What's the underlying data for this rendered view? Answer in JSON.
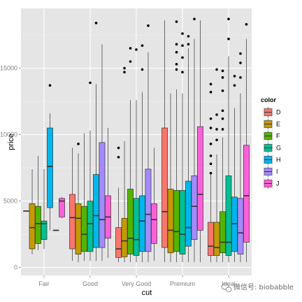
{
  "chart_data": {
    "type": "boxplot",
    "xlabel": "cut",
    "ylabel": "price",
    "ylim": [
      -600,
      19500
    ],
    "y_ticks": [
      0,
      5000,
      10000,
      15000
    ],
    "categories": [
      "Fair",
      "Good",
      "Very Good",
      "Premium",
      "Ideal"
    ],
    "legend_title": "color",
    "legend_placement": "right",
    "grid": true,
    "series": [
      {
        "name": "D",
        "color": "#F8766D",
        "boxes": [
          {
            "cat": "Fair",
            "min": 4250,
            "q1": 4250,
            "median": 4250,
            "q3": 4250,
            "max": 4250,
            "outliers": []
          },
          {
            "cat": "Good",
            "min": 500,
            "q1": 1400,
            "median": 3750,
            "q3": 5500,
            "max": 9000,
            "outliers": []
          },
          {
            "cat": "Very Good",
            "min": 400,
            "q1": 750,
            "median": 1400,
            "q3": 3000,
            "max": 6000,
            "outliers": [
              8300,
              9000
            ]
          },
          {
            "cat": "Premium",
            "min": 400,
            "q1": 1500,
            "median": 4200,
            "q3": 10500,
            "max": 18600,
            "outliers": []
          },
          {
            "cat": "Ideal",
            "min": 400,
            "q1": 900,
            "median": 1600,
            "q3": 3400,
            "max": 7000,
            "outliers": [
              7100,
              7800,
              8400,
              9300,
              10500,
              11200,
              13200,
              13800
            ]
          }
        ]
      },
      {
        "name": "E",
        "color": "#C49A00",
        "boxes": [
          {
            "cat": "Fair",
            "min": 1000,
            "q1": 1400,
            "median": 3000,
            "q3": 4800,
            "max": 7400,
            "outliers": []
          },
          {
            "cat": "Good",
            "min": 400,
            "q1": 1000,
            "median": 3700,
            "q3": 4800,
            "max": 8600,
            "outliers": [
              9300
            ]
          },
          {
            "cat": "Very Good",
            "min": 400,
            "q1": 800,
            "median": 2000,
            "q3": 3700,
            "max": 9500,
            "outliers": [
              14700,
              15000
            ]
          },
          {
            "cat": "Premium",
            "min": 400,
            "q1": 1100,
            "median": 2800,
            "q3": 5900,
            "max": 13100,
            "outliers": []
          },
          {
            "cat": "Ideal",
            "min": 400,
            "q1": 900,
            "median": 1500,
            "q3": 3400,
            "max": 8500,
            "outliers": [
              9600,
              10400,
              11500,
              14900
            ]
          }
        ]
      },
      {
        "name": "F",
        "color": "#53B400",
        "boxes": [
          {
            "cat": "Fair",
            "min": 1300,
            "q1": 1800,
            "median": 3300,
            "q3": 4600,
            "max": 8400,
            "outliers": []
          },
          {
            "cat": "Good",
            "min": 500,
            "q1": 1200,
            "median": 2500,
            "q3": 4600,
            "max": 10100,
            "outliers": []
          },
          {
            "cat": "Very Good",
            "min": 400,
            "q1": 1000,
            "median": 2200,
            "q3": 5900,
            "max": 12600,
            "outliers": [
              15500,
              16500
            ]
          },
          {
            "cat": "Premium",
            "min": 400,
            "q1": 1200,
            "median": 2700,
            "q3": 5800,
            "max": 13400,
            "outliers": [
              14900,
              15300,
              16200,
              16800,
              18500
            ]
          },
          {
            "cat": "Ideal",
            "min": 400,
            "q1": 1100,
            "median": 1900,
            "q3": 4200,
            "max": 9800,
            "outliers": [
              10400,
              11200,
              11800,
              13300,
              14300,
              14800
            ]
          }
        ]
      },
      {
        "name": "G",
        "color": "#00C094",
        "boxes": [
          {
            "cat": "Fair",
            "min": 1400,
            "q1": 2100,
            "median": 3300,
            "q3": 3500,
            "max": 7400,
            "outliers": []
          },
          {
            "cat": "Good",
            "min": 500,
            "q1": 1200,
            "median": 3300,
            "q3": 5000,
            "max": 10300,
            "outliers": [
              13900
            ]
          },
          {
            "cat": "Very Good",
            "min": 400,
            "q1": 900,
            "median": 2100,
            "q3": 5200,
            "max": 12600,
            "outliers": [
              16400
            ]
          },
          {
            "cat": "Premium",
            "min": 400,
            "q1": 1000,
            "median": 2500,
            "q3": 5800,
            "max": 13100,
            "outliers": [
              14700,
              15800,
              16700,
              17600
            ]
          },
          {
            "cat": "Ideal",
            "min": 400,
            "q1": 900,
            "median": 1900,
            "q3": 6900,
            "max": 15900,
            "outliers": [
              17200,
              18700
            ]
          }
        ]
      },
      {
        "name": "H",
        "color": "#00B6EB",
        "boxes": [
          {
            "cat": "Fair",
            "min": 2800,
            "q1": 4500,
            "median": 7600,
            "q3": 10500,
            "max": 11600,
            "outliers": [
              13700
            ]
          },
          {
            "cat": "Good",
            "min": 500,
            "q1": 1500,
            "median": 3900,
            "q3": 7000,
            "max": 13800,
            "outliers": [
              18400
            ]
          },
          {
            "cat": "Very Good",
            "min": 400,
            "q1": 1200,
            "median": 3500,
            "q3": 5400,
            "max": 13200,
            "outliers": [
              14900,
              16700
            ]
          },
          {
            "cat": "Premium",
            "min": 400,
            "q1": 1600,
            "median": 3000,
            "q3": 6500,
            "max": 16500,
            "outliers": [
              16800,
              17400
            ]
          },
          {
            "cat": "Ideal",
            "min": 400,
            "q1": 1200,
            "median": 3300,
            "q3": 5300,
            "max": 12000,
            "outliers": [
              13700,
              14400
            ]
          }
        ]
      },
      {
        "name": "I",
        "color": "#A58AFF",
        "boxes": [
          {
            "cat": "Fair",
            "min": 2800,
            "q1": 2800,
            "median": 2800,
            "q3": 2800,
            "max": 2800,
            "outliers": []
          },
          {
            "cat": "Good",
            "min": 500,
            "q1": 1500,
            "median": 3600,
            "q3": 9400,
            "max": 16800,
            "outliers": []
          },
          {
            "cat": "Very Good",
            "min": 400,
            "q1": 1200,
            "median": 4000,
            "q3": 7400,
            "max": 16200,
            "outliers": [
              18200
            ]
          },
          {
            "cat": "Premium",
            "min": 400,
            "q1": 2100,
            "median": 4600,
            "q3": 6900,
            "max": 17200,
            "outliers": [
              18700
            ]
          },
          {
            "cat": "Ideal",
            "min": 400,
            "q1": 1000,
            "median": 2600,
            "q3": 5200,
            "max": 13100,
            "outliers": [
              14300,
              15400,
              16100
            ]
          }
        ]
      },
      {
        "name": "J",
        "color": "#FB61D7",
        "boxes": [
          {
            "cat": "Fair",
            "min": 3700,
            "q1": 3800,
            "median": 5000,
            "q3": 5200,
            "max": 5300,
            "outliers": []
          },
          {
            "cat": "Good",
            "min": 700,
            "q1": 2200,
            "median": 3800,
            "q3": 5400,
            "max": 10500,
            "outliers": []
          },
          {
            "cat": "Very Good",
            "min": 500,
            "q1": 1800,
            "median": 3600,
            "q3": 4800,
            "max": 9000,
            "outliers": []
          },
          {
            "cat": "Premium",
            "min": 400,
            "q1": 2800,
            "median": 5500,
            "q3": 10600,
            "max": 18600,
            "outliers": []
          },
          {
            "cat": "Ideal",
            "min": 400,
            "q1": 1900,
            "median": 5400,
            "q3": 9200,
            "max": 17200,
            "outliers": [
              18300
            ]
          }
        ]
      }
    ]
  },
  "watermark": {
    "text": "微信号: biobabble",
    "icon": "wechat-icon"
  }
}
